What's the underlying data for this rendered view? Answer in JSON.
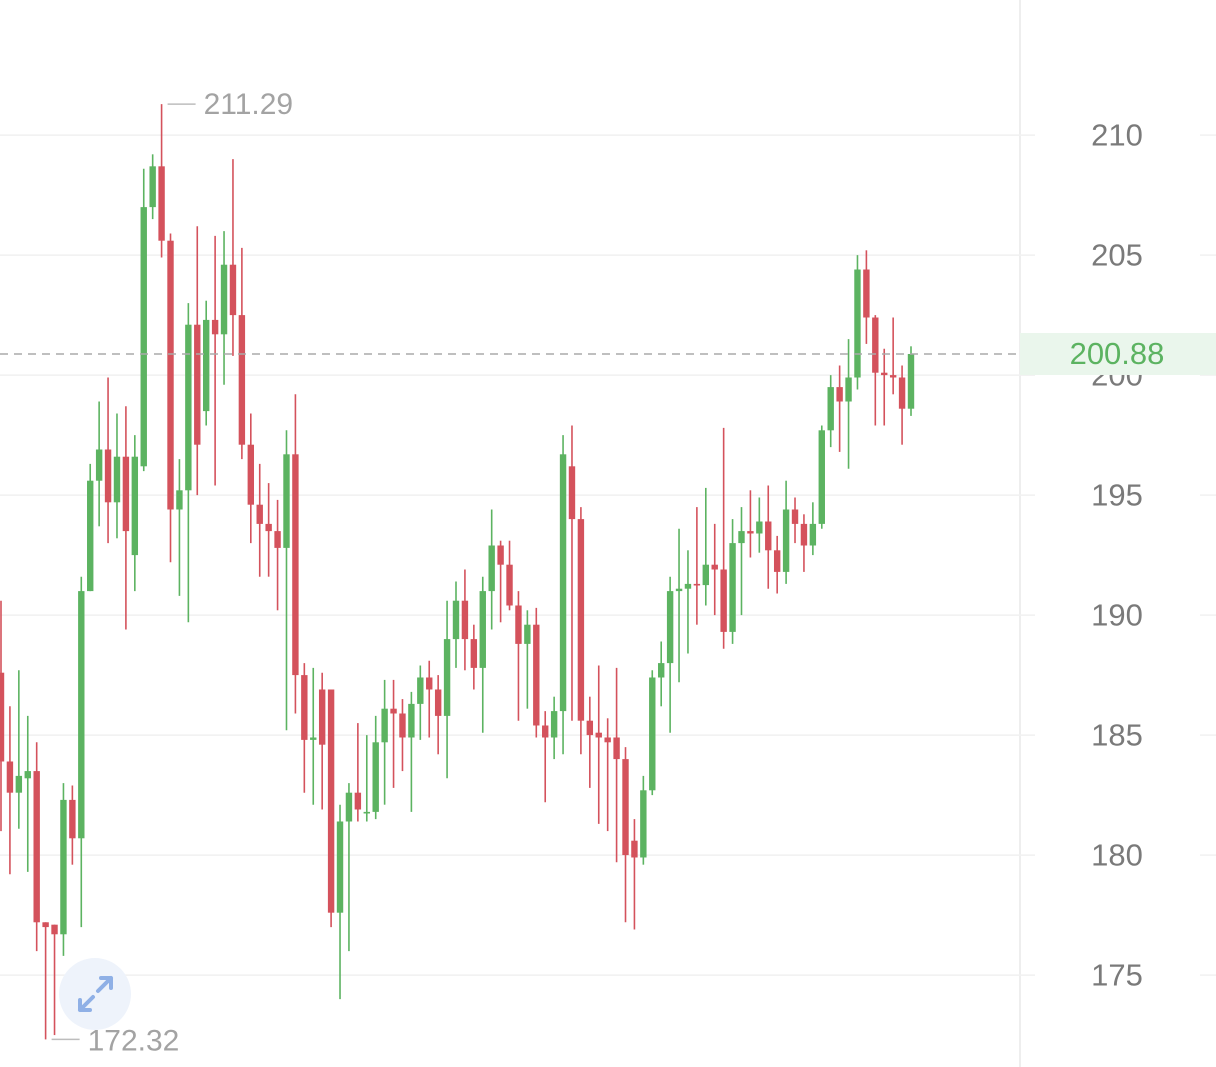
{
  "chart_data": {
    "type": "candlestick",
    "open": [
      187.6,
      183.9,
      182.6,
      183.2,
      183.5,
      177.2,
      177.1,
      176.7,
      182.3,
      180.7,
      191.0,
      195.6,
      196.9,
      194.7,
      196.6,
      192.5,
      196.2,
      207.0,
      208.7,
      205.6,
      194.4,
      195.2,
      202.1,
      198.5,
      202.3,
      201.7,
      204.6,
      202.5,
      197.1,
      194.6,
      193.8,
      193.5,
      192.8,
      196.7,
      187.5,
      184.8,
      186.9,
      186.9,
      177.6,
      181.4,
      182.6,
      181.8,
      181.8,
      184.7,
      186.1,
      185.9,
      184.9,
      186.3,
      187.4,
      186.9,
      185.8,
      189.0,
      190.6,
      189.0,
      187.8,
      191.0,
      192.9,
      192.1,
      190.4,
      188.8,
      189.6,
      185.4,
      184.9,
      186.0,
      196.2,
      194.0,
      185.6,
      185.1,
      184.9,
      184.9,
      184.0,
      180.6,
      179.9,
      182.7,
      187.4,
      188.0,
      191.0,
      191.1,
      191.3,
      191.25,
      192.1,
      191.9,
      189.3,
      193.0,
      193.5,
      193.4,
      193.9,
      192.7,
      191.8,
      194.4,
      193.8,
      192.9,
      193.8,
      197.7,
      199.5,
      198.9,
      199.9,
      204.4,
      202.4,
      200.1,
      200.0,
      199.9,
      198.6
    ],
    "high": [
      190.6,
      186.2,
      187.7,
      185.8,
      184.7,
      177.2,
      177.1,
      183.0,
      182.9,
      191.6,
      196.3,
      198.9,
      199.9,
      198.4,
      198.7,
      197.5,
      208.6,
      209.2,
      211.29,
      205.9,
      196.5,
      203.0,
      206.2,
      203.1,
      205.8,
      206.0,
      209.0,
      205.3,
      198.4,
      196.3,
      195.5,
      194.8,
      197.7,
      199.2,
      188.0,
      187.8,
      187.6,
      186.9,
      182.1,
      183.0,
      185.5,
      185.0,
      185.8,
      187.3,
      187.3,
      186.5,
      186.8,
      187.9,
      188.1,
      187.5,
      190.6,
      191.4,
      191.9,
      189.6,
      191.6,
      194.4,
      193.1,
      193.1,
      191.0,
      190.2,
      190.3,
      186.0,
      186.6,
      197.5,
      197.9,
      194.5,
      186.6,
      187.9,
      185.7,
      187.8,
      184.5,
      181.5,
      183.3,
      187.7,
      188.9,
      191.6,
      193.6,
      192.7,
      194.5,
      195.3,
      193.8,
      197.8,
      194.0,
      194.5,
      195.2,
      194.9,
      195.4,
      193.3,
      195.6,
      194.9,
      194.2,
      194.7,
      197.9,
      200.0,
      200.4,
      201.5,
      205.0,
      205.2,
      202.5,
      201.1,
      202.4,
      200.4,
      201.2
    ],
    "low": [
      181.0,
      179.2,
      181.1,
      179.3,
      176.0,
      172.32,
      172.5,
      175.8,
      179.6,
      177.0,
      191.0,
      193.7,
      193.0,
      193.2,
      189.4,
      191.0,
      196.0,
      206.5,
      204.9,
      192.2,
      190.8,
      189.7,
      195.0,
      197.9,
      195.4,
      199.6,
      200.8,
      196.5,
      193.0,
      191.6,
      191.6,
      190.2,
      185.2,
      185.9,
      182.6,
      182.1,
      181.9,
      177.0,
      174.0,
      176.0,
      181.4,
      181.4,
      181.5,
      182.1,
      182.8,
      183.5,
      181.8,
      184.8,
      184.9,
      184.2,
      183.2,
      187.8,
      187.7,
      186.9,
      185.1,
      189.4,
      189.7,
      190.2,
      185.6,
      186.1,
      184.9,
      182.2,
      184.0,
      184.2,
      185.6,
      184.2,
      182.8,
      181.3,
      181.0,
      179.7,
      177.2,
      176.9,
      179.6,
      182.5,
      186.2,
      185.1,
      187.2,
      188.4,
      189.6,
      190.4,
      190.0,
      188.6,
      188.8,
      190.0,
      192.4,
      192.6,
      191.1,
      190.9,
      191.3,
      193.0,
      191.8,
      192.5,
      193.6,
      197.0,
      196.8,
      196.1,
      199.4,
      201.3,
      197.9,
      197.9,
      199.2,
      197.1,
      198.3
    ],
    "close": [
      183.9,
      182.6,
      183.3,
      183.5,
      177.2,
      177.0,
      176.7,
      182.3,
      180.7,
      191.0,
      195.6,
      196.9,
      194.7,
      196.6,
      193.5,
      196.6,
      207.0,
      208.7,
      205.6,
      194.4,
      195.2,
      202.1,
      197.1,
      202.3,
      201.7,
      204.6,
      202.5,
      197.1,
      194.6,
      193.8,
      193.5,
      192.8,
      196.7,
      187.5,
      184.8,
      184.9,
      184.6,
      177.6,
      181.4,
      182.6,
      181.9,
      181.8,
      184.7,
      186.1,
      185.9,
      184.9,
      186.3,
      187.4,
      186.9,
      185.8,
      189.0,
      190.6,
      189.0,
      187.8,
      191.0,
      192.9,
      192.1,
      190.4,
      188.8,
      189.6,
      185.4,
      184.9,
      186.0,
      196.7,
      194.0,
      185.6,
      185.0,
      184.9,
      184.7,
      184.0,
      180.0,
      179.9,
      182.7,
      187.4,
      188.0,
      191.0,
      191.1,
      191.3,
      191.25,
      192.1,
      191.9,
      189.3,
      193.0,
      193.5,
      193.4,
      193.9,
      192.7,
      191.8,
      194.4,
      193.8,
      192.9,
      193.8,
      197.7,
      199.5,
      198.9,
      199.9,
      204.4,
      202.4,
      200.1,
      200.0,
      199.9,
      198.6,
      200.88
    ],
    "up_color": "#5cb361",
    "down_color": "#d4525c",
    "ylim": [
      171.17,
      215.63
    ],
    "yticks": [
      175,
      180,
      185,
      190,
      195,
      200,
      205,
      210
    ],
    "grid": true
  }
}
